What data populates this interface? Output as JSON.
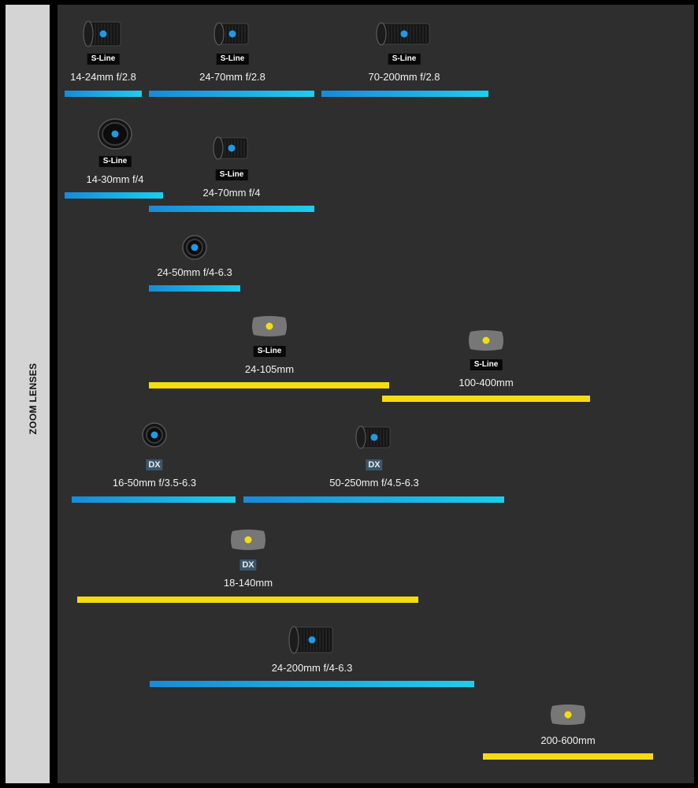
{
  "sidebar": {
    "label": "ZOOM LENSES"
  },
  "lenses": [
    {
      "name": "14-24mm f/2.8",
      "badge": "S-Line",
      "bar_color": "blue",
      "icon": "z-lens-icon"
    },
    {
      "name": "24-70mm f/2.8",
      "badge": "S-Line",
      "bar_color": "blue",
      "icon": "z-lens-icon"
    },
    {
      "name": "70-200mm f/2.8",
      "badge": "S-Line",
      "bar_color": "blue",
      "icon": "z-lens-icon"
    },
    {
      "name": "14-30mm f/4",
      "badge": "S-Line",
      "bar_color": "blue",
      "icon": "z-lens-icon"
    },
    {
      "name": "24-70mm f/4",
      "badge": "S-Line",
      "bar_color": "blue",
      "icon": "z-lens-icon"
    },
    {
      "name": "24-50mm f/4-6.3",
      "badge": "",
      "bar_color": "blue",
      "icon": "z-lens-icon"
    },
    {
      "name": "24-105mm",
      "badge": "S-Line",
      "bar_color": "yellow",
      "icon": "upcoming-lens-icon"
    },
    {
      "name": "100-400mm",
      "badge": "S-Line",
      "bar_color": "yellow",
      "icon": "upcoming-lens-icon"
    },
    {
      "name": "16-50mm f/3.5-6.3",
      "badge": "DX",
      "bar_color": "blue",
      "icon": "z-lens-icon"
    },
    {
      "name": "50-250mm f/4.5-6.3",
      "badge": "DX",
      "bar_color": "blue",
      "icon": "z-lens-icon"
    },
    {
      "name": "18-140mm",
      "badge": "DX",
      "bar_color": "yellow",
      "icon": "upcoming-lens-icon"
    },
    {
      "name": "24-200mm f/4-6.3",
      "badge": "",
      "bar_color": "blue",
      "icon": "z-lens-icon"
    },
    {
      "name": "200-600mm",
      "badge": "",
      "bar_color": "yellow",
      "icon": "upcoming-lens-icon"
    }
  ],
  "colors": {
    "available_bar_start": "#1a8ad6",
    "available_bar_end": "#1ecdec",
    "upcoming_bar": "#f4dc10",
    "background": "#2e2e2e",
    "sidebar": "#d4d4d4"
  }
}
